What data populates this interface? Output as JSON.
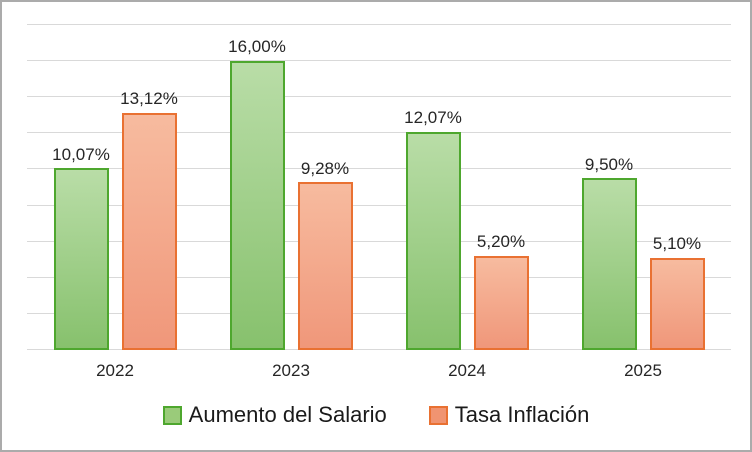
{
  "chart_data": {
    "type": "bar",
    "title": "",
    "xlabel": "",
    "ylabel": "",
    "categories": [
      "2022",
      "2023",
      "2024",
      "2025"
    ],
    "series": [
      {
        "name": "Aumento del Salario",
        "values": [
          10.07,
          16.0,
          12.07,
          9.5
        ],
        "labels": [
          "10,07%",
          "16,00%",
          "12,07%",
          "9,50%"
        ],
        "fill_top": "#b9dda7",
        "fill_bottom": "#87c16d",
        "border": "#4ea72e",
        "swatch": "#9acb7a"
      },
      {
        "name": "Tasa Inflación",
        "values": [
          13.12,
          9.28,
          5.2,
          5.1
        ],
        "labels": [
          "13,12%",
          "9,28%",
          "5,20%",
          "5,10%"
        ],
        "fill_top": "#f7bb9f",
        "fill_bottom": "#f0977a",
        "border": "#e97132",
        "swatch": "#f09471"
      }
    ],
    "ylim": [
      0,
      18
    ],
    "grid_step": 2,
    "grid": true,
    "legend_position": "bottom"
  },
  "colors": {
    "grid": "#d9d9d9",
    "axis_text": "#262626",
    "label_text": "#262626",
    "legend_text": "#1a1a1a",
    "canvas_border": "#ababab",
    "background": "#ffffff"
  }
}
